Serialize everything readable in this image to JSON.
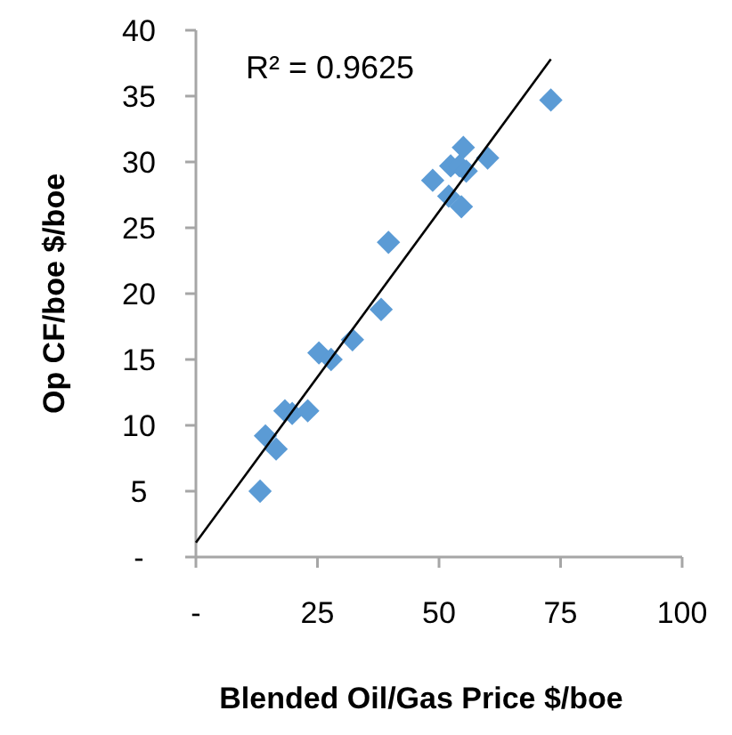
{
  "chart_data": {
    "type": "scatter",
    "xlabel": "Blended Oil/Gas Price $/boe",
    "ylabel": "Op CF/boe $/boe",
    "annotations": [
      "R² = 0.9625"
    ],
    "xlim": [
      0,
      100
    ],
    "xticks": [
      {
        "value": 0,
        "label": "-"
      },
      25,
      50,
      75,
      100
    ],
    "ylim": [
      0,
      40
    ],
    "yticks": [
      {
        "value": 0,
        "label": "-"
      },
      5,
      10,
      15,
      20,
      25,
      30,
      35,
      40
    ],
    "grid": false,
    "marker": "diamond",
    "series": [
      {
        "color": "#5b9bd5",
        "x": [
          13.2,
          14.3,
          16.5,
          18.3,
          19.8,
          23,
          25.3,
          27.8,
          32.2,
          38.1,
          39.6,
          48.7,
          52.4,
          54.2,
          52,
          54.6,
          55,
          55.6,
          60,
          73
        ],
        "values": [
          5,
          9.2,
          8.2,
          11.1,
          10.9,
          11.1,
          15.5,
          15,
          16.5,
          18.8,
          23.9,
          28.6,
          29.7,
          29.7,
          27.4,
          26.6,
          31.1,
          29.3,
          30.3,
          34.7
        ]
      },
      {
        "type": "line",
        "color": "#000000",
        "marker": "none",
        "x": [
          0,
          73
        ],
        "values": [
          1.1,
          37.8
        ]
      }
    ]
  }
}
